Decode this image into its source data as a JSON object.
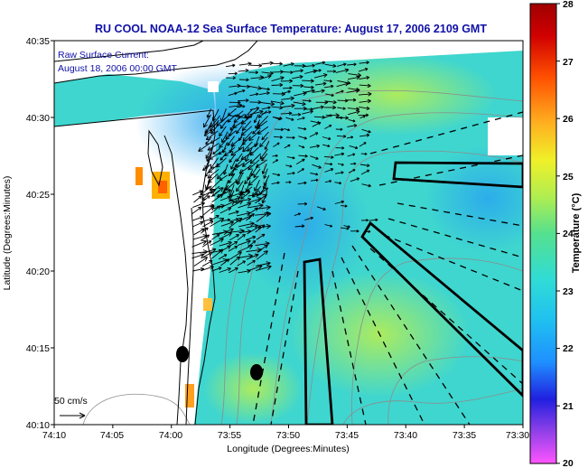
{
  "title": "RU COOL  NOAA-12  Sea Surface Temperature:  August 17, 2006 2109 GMT",
  "legend": {
    "line1": "Raw Surface Current:",
    "line2": "August 18, 2006 00:00 GMT",
    "scale_label": "50 cm/s"
  },
  "x_axis": {
    "label": "Longitude (Degrees:Minutes)",
    "ticks": [
      "74:10",
      "74:05",
      "74:00",
      "73:55",
      "73:50",
      "73:45",
      "73:40",
      "73:35",
      "73:30"
    ]
  },
  "y_axis": {
    "label": "Latitude (Degrees:Minutes)",
    "ticks": [
      "40:35",
      "40:30",
      "40:25",
      "40:20",
      "40:15",
      "40:10"
    ]
  },
  "colorbar": {
    "label": "Temperature (°C)",
    "ticks": [
      "28",
      "27",
      "26",
      "25",
      "24",
      "23",
      "22",
      "21",
      "20"
    ],
    "colors": [
      "#ff55ff",
      "#4030e0",
      "#1f8fff",
      "#28d4e6",
      "#55e08e",
      "#d8f03a",
      "#ffb020",
      "#ff4000",
      "#a00000"
    ]
  },
  "colors": {
    "land": "#ffffff",
    "water_main": "#3fd6cf",
    "water_warm": "#8fe870",
    "water_cool": "#2cb6ea",
    "contour": "#8c8c8c",
    "coast": "#000000"
  }
}
